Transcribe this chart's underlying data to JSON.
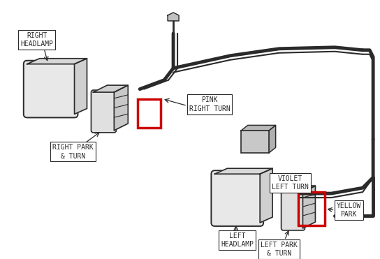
{
  "bg_color": "#ffffff",
  "line_color": "#2a2a2a",
  "red_box_color": "#cc0000",
  "label_box_color": "#ffffff",
  "label_border_color": "#2a2a2a",
  "figsize": [
    5.44,
    3.71
  ],
  "dpi": 100,
  "right_headlamp_label": "RIGHT\nHEADLAMP",
  "right_park_label": "RIGHT PARK\n& TURN",
  "pink_label": "PINK\nRIGHT TURN",
  "violet_label": "VIOLET\nLEFT TURN",
  "yellow_label": "YELLOW\nPARK",
  "left_headlamp_label": "LEFT\nHEADLAMP",
  "left_park_label": "LEFT PARK\n& TURN"
}
